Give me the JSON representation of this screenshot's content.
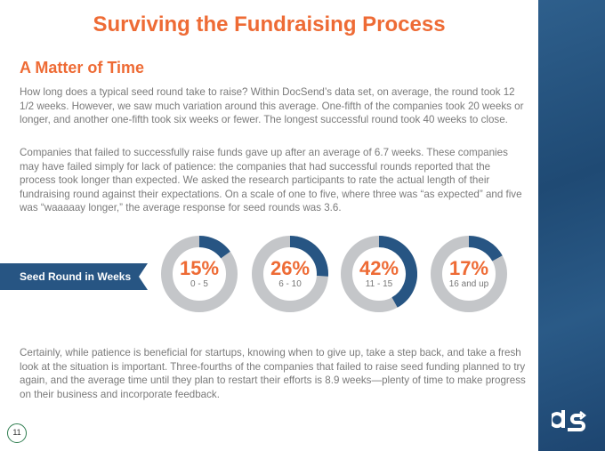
{
  "title": "Surviving the Fundraising Process",
  "subtitle": "A Matter of Time",
  "paragraphs": [
    "How long does a typical seed round take to raise? Within DocSend’s data set, on average, the round took 12 1/2 weeks. However, we saw much variation around this average. One-fifth of the companies took 20 weeks or longer, and another one-fifth took six weeks or fewer. The longest successful round took 40 weeks to close.",
    "Companies that failed to successfully raise funds gave up after an average of 6.7 weeks. These companies may have failed simply for lack of patience: the companies that had successful rounds reported that the process took longer than expected. We asked the research participants to rate the actual length of their fundraising round against their expectations. On a scale of one to five, where three was “as expected” and five was “waaaaay longer,” the average response for seed rounds was 3.6.",
    "Certainly, while patience is beneficial for startups, knowing when to give up, take a step back, and take a fresh look at the situation is important. Three-fourths of the companies that failed to raise seed funding planned to try again, and the average time until they plan to restart their efforts is 8.9 weeks—plenty of time to make progress on their business and incorporate feedback."
  ],
  "ribbon_label": "Seed Round in Weeks",
  "donuts": [
    {
      "percent_label": "15%",
      "value": 15,
      "range": "0 - 5"
    },
    {
      "percent_label": "26%",
      "value": 26,
      "range": "6 - 10"
    },
    {
      "percent_label": "42%",
      "value": 42,
      "range": "11 - 15"
    },
    {
      "percent_label": "17%",
      "value": 17,
      "range": "16 and up"
    }
  ],
  "colors": {
    "accent": "#ee6b35",
    "brand_blue": "#275583",
    "ring_gray": "#c4c6c9"
  },
  "page_number": "11"
}
